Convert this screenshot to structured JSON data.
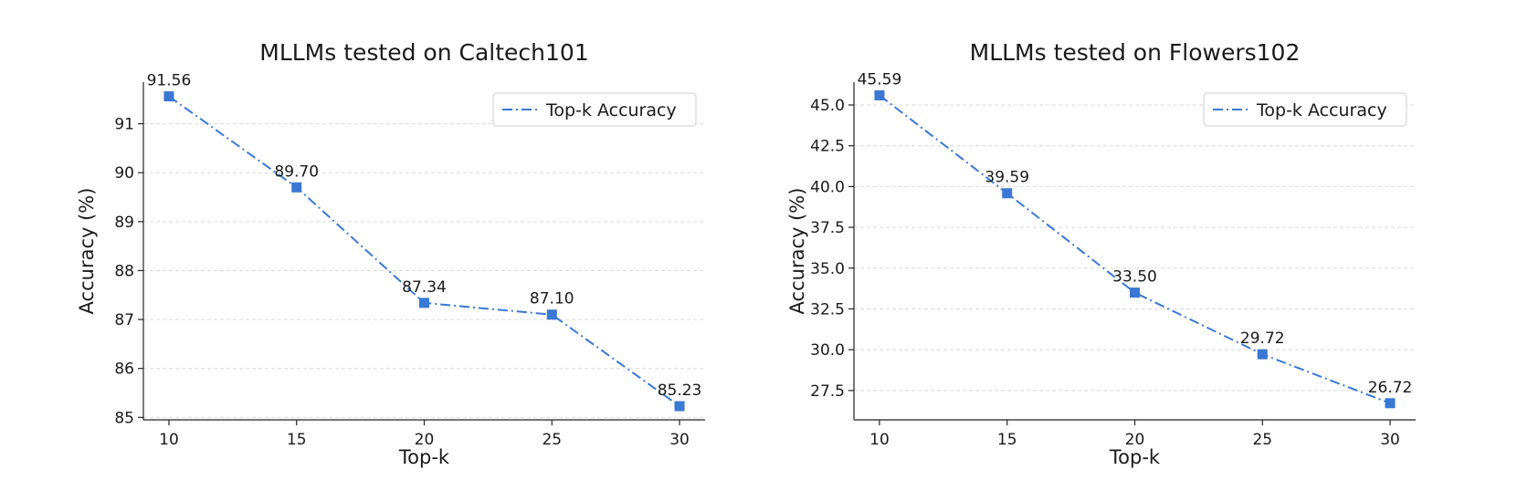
{
  "chart_data": [
    {
      "type": "line",
      "title": "MLLMs tested on Caltech101",
      "xlabel": "Top-k",
      "ylabel": "Accuracy (%)",
      "x": [
        10,
        15,
        20,
        25,
        30
      ],
      "x_ticks": [
        "10",
        "15",
        "20",
        "25",
        "30"
      ],
      "xlim": [
        9,
        31
      ],
      "ylim": [
        84.95,
        91.85
      ],
      "y_ticks": [
        85,
        86,
        87,
        88,
        89,
        90,
        91
      ],
      "y_tick_labels": [
        "85",
        "86",
        "87",
        "88",
        "89",
        "90",
        "91"
      ],
      "grid": "y-dashed",
      "legend": {
        "position": "top-right",
        "entries": [
          "Top-k Accuracy"
        ]
      },
      "series": [
        {
          "name": "Top-k Accuracy",
          "color": "#3a78d4",
          "line_style": "dash-dot",
          "marker": "square",
          "values": [
            91.56,
            89.7,
            87.34,
            87.1,
            85.23
          ],
          "value_labels": [
            "91.56",
            "89.70",
            "87.34",
            "87.10",
            "85.23"
          ]
        }
      ]
    },
    {
      "type": "line",
      "title": "MLLMs tested on Flowers102",
      "xlabel": "Top-k",
      "ylabel": "Accuracy (%)",
      "x": [
        10,
        15,
        20,
        25,
        30
      ],
      "x_ticks": [
        "10",
        "15",
        "20",
        "25",
        "30"
      ],
      "xlim": [
        9,
        31
      ],
      "ylim": [
        25.7,
        46.4
      ],
      "y_ticks": [
        27.5,
        30.0,
        32.5,
        35.0,
        37.5,
        40.0,
        42.5,
        45.0
      ],
      "y_tick_labels": [
        "27.5",
        "30.0",
        "32.5",
        "35.0",
        "37.5",
        "40.0",
        "42.5",
        "45.0"
      ],
      "grid": "y-dashed",
      "legend": {
        "position": "top-right",
        "entries": [
          "Top-k Accuracy"
        ]
      },
      "series": [
        {
          "name": "Top-k Accuracy",
          "color": "#3a78d4",
          "line_style": "dash-dot",
          "marker": "square",
          "values": [
            45.59,
            39.59,
            33.5,
            29.72,
            26.72
          ],
          "value_labels": [
            "45.59",
            "39.59",
            "33.50",
            "29.72",
            "26.72"
          ]
        }
      ]
    }
  ]
}
